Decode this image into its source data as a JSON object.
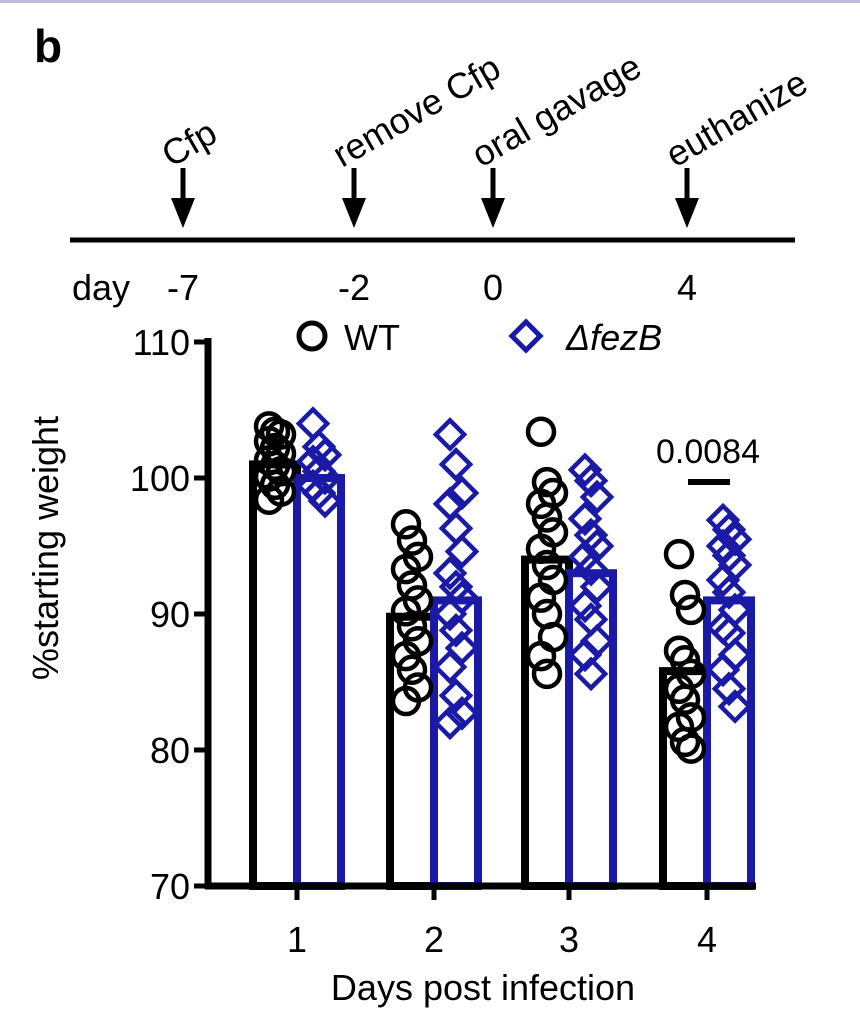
{
  "panel_label": "b",
  "timeline": {
    "events": [
      {
        "label": "Cfp",
        "day": "-7"
      },
      {
        "label": "remove Cfp",
        "day": "-2"
      },
      {
        "label": "oral gavage",
        "day": "0"
      },
      {
        "label": "euthanize",
        "day": "4"
      }
    ],
    "day_label": "day"
  },
  "chart_data": {
    "type": "bar",
    "title": "",
    "xlabel": "Days post infection",
    "ylabel": "%starting weight",
    "ylim": [
      70,
      110
    ],
    "yticks": [
      70,
      80,
      90,
      100,
      110
    ],
    "categories": [
      "1",
      "2",
      "3",
      "4"
    ],
    "legend_position": "top",
    "series": [
      {
        "name": "WT",
        "marker": "circle",
        "color": "#000000",
        "mean": [
          101,
          89.8,
          94,
          85.8
        ],
        "points": [
          [
            103.8,
            103.4,
            103.2,
            102.7,
            102.2,
            101.8,
            101.3,
            100.9,
            100.5,
            100.1,
            99.5,
            99.0,
            98.4
          ],
          [
            96.6,
            95.4,
            94.2,
            93.3,
            92.1,
            91.0,
            90.2,
            89.1,
            88.0,
            86.9,
            85.9,
            84.6,
            83.6
          ],
          [
            103.4,
            99.7,
            98.9,
            98.1,
            97.1,
            96.0,
            94.8,
            93.6,
            92.5,
            91.2,
            90.0,
            88.3,
            86.9,
            85.6
          ],
          [
            94.4,
            91.4,
            90.3,
            87.3,
            86.6,
            85.6,
            84.5,
            83.7,
            82.4,
            81.7,
            80.6,
            80.1
          ]
        ]
      },
      {
        "name": "ΔfezB",
        "marker": "diamond",
        "color": "#1a1aa6",
        "mean": [
          100,
          91,
          93,
          91
        ],
        "points": [
          [
            104.0,
            102.3,
            101.7,
            101.2,
            100.5,
            100.0,
            99.4,
            98.9,
            98.3
          ],
          [
            103.2,
            101.0,
            98.9,
            98.1,
            96.3,
            94.6,
            93.0,
            92.0,
            91.2,
            90.0,
            88.8,
            87.5,
            86.1,
            84.0,
            82.7,
            82.0
          ],
          [
            100.6,
            99.8,
            98.6,
            97.0,
            95.8,
            95.0,
            94.2,
            93.3,
            92.0,
            90.6,
            89.6,
            88.0,
            87.0,
            85.6
          ],
          [
            96.9,
            96.2,
            95.5,
            95.0,
            94.3,
            93.6,
            92.5,
            91.6,
            90.3,
            89.0,
            88.6,
            87.0,
            85.9,
            84.5,
            83.2
          ]
        ]
      }
    ],
    "annotations": [
      {
        "text": "0.0084",
        "category": "4"
      }
    ]
  }
}
